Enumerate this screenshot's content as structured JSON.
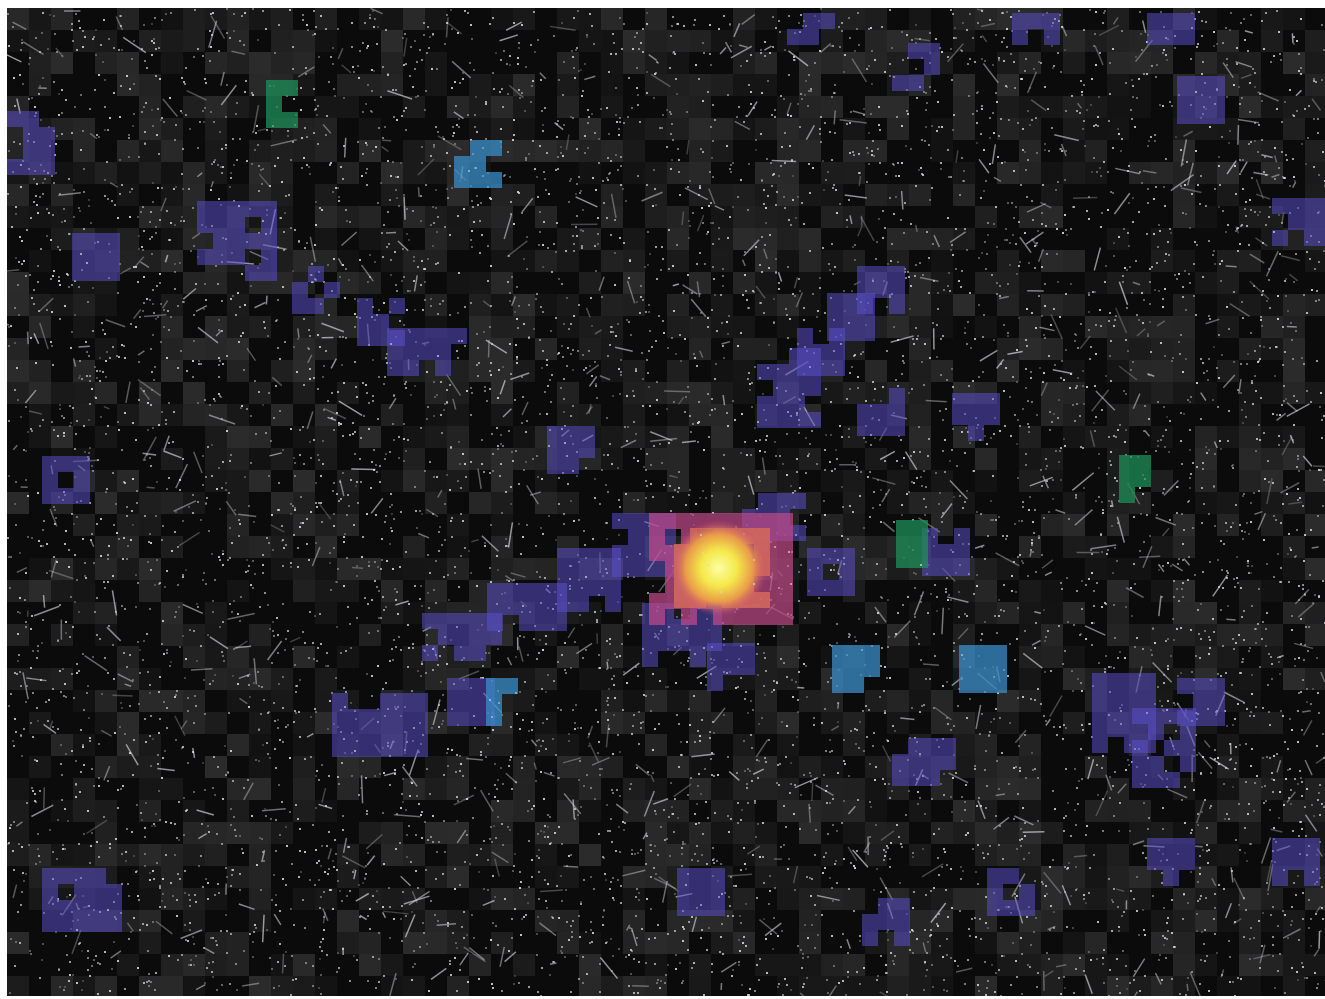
{
  "map": {
    "style": "pixelated-density-heatmap",
    "background_color": "#0b0b0b",
    "base_texture_color": "#2a2a2a",
    "street_light_color": "#d8d8e0",
    "palette": {
      "low": "#5a4fc8",
      "medium_low": "#3a8ec8",
      "medium": "#1f8f5a",
      "high": "#c24a8a",
      "peak": "#f4e84a"
    }
  }
}
